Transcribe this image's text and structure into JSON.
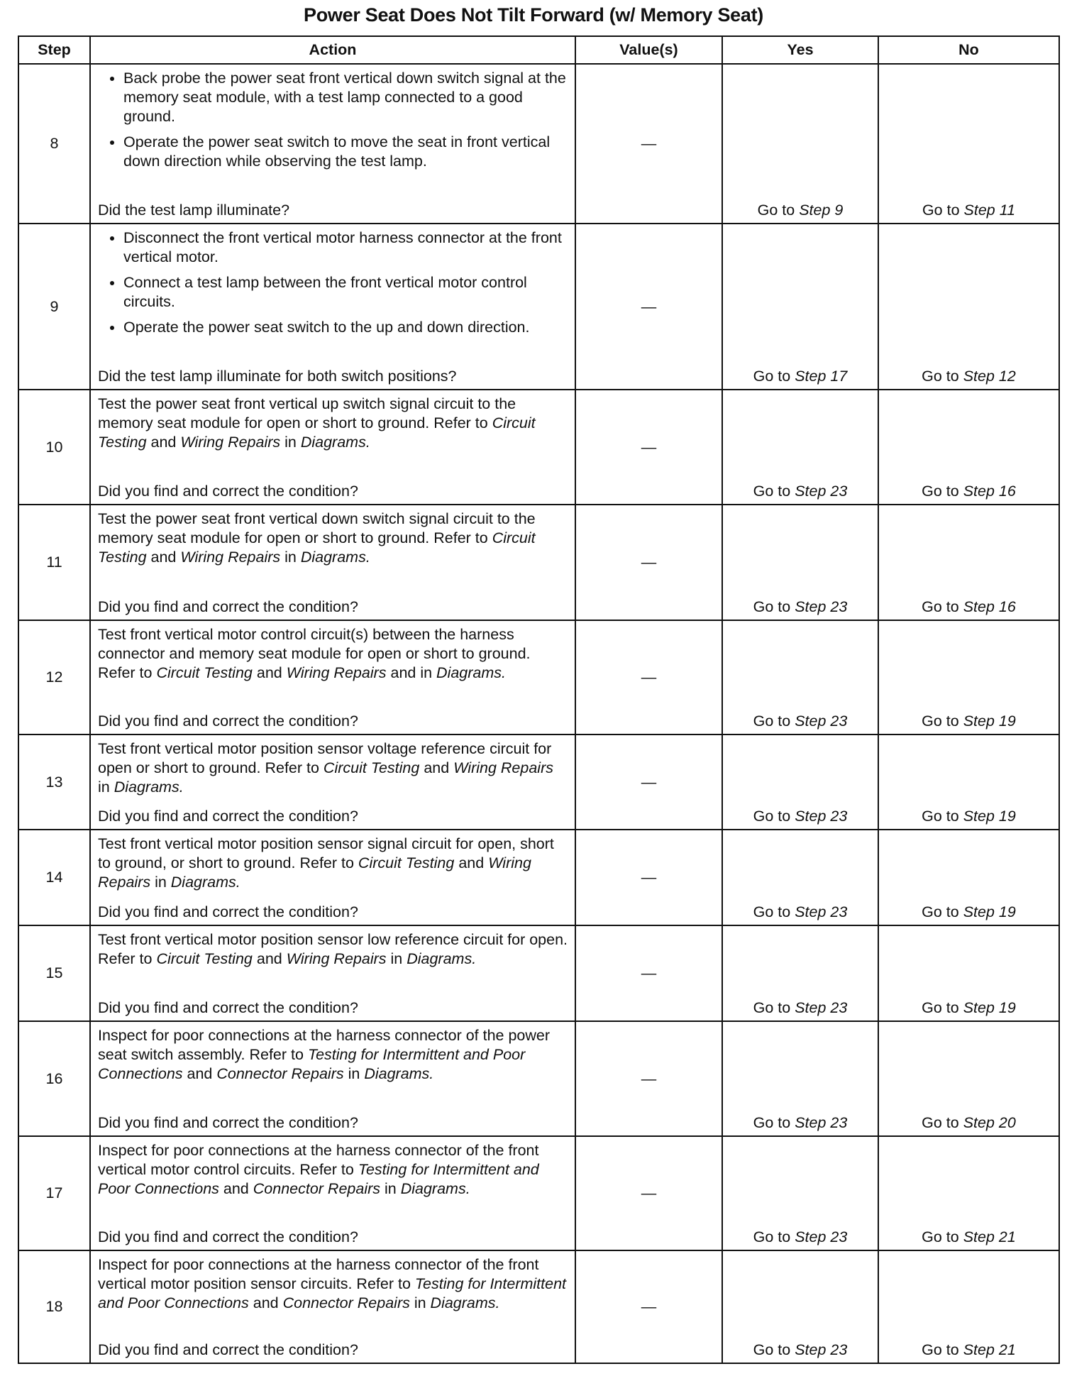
{
  "title": "Power Seat Does Not Tilt Forward (w/ Memory Seat)",
  "columns": {
    "step": "Step",
    "action": "Action",
    "values": "Value(s)",
    "yes": "Yes",
    "no": "No"
  },
  "goto_prefix": "Go to ",
  "rows": [
    {
      "step": "8",
      "value": "—",
      "bullets": [
        [
          {
            "t": "Back probe the power seat front vertical down switch signal at the memory seat module, with a test lamp connected to a good ground."
          }
        ],
        [
          {
            "t": "Operate the power seat switch to move the seat in front vertical down direction while observing the test lamp."
          }
        ]
      ],
      "question": "Did the test lamp illuminate?",
      "yes": "Step 9",
      "no": "Step 11"
    },
    {
      "step": "9",
      "value": "—",
      "bullets": [
        [
          {
            "t": "Disconnect the front vertical motor harness connector at the front vertical motor."
          }
        ],
        [
          {
            "t": "Connect a test lamp between the front vertical motor control circuits."
          }
        ],
        [
          {
            "t": "Operate the power seat switch to the up and down direction."
          }
        ]
      ],
      "question": "Did the test lamp illuminate for both switch positions?",
      "yes": "Step 17",
      "no": "Step 12"
    },
    {
      "step": "10",
      "value": "—",
      "text": [
        {
          "t": "Test the power seat front vertical up switch signal circuit to the memory seat module for open or short to ground. Refer to "
        },
        {
          "t": "Circuit Testing",
          "i": true
        },
        {
          "t": " and "
        },
        {
          "t": "Wiring Repairs",
          "i": true
        },
        {
          "t": " in "
        },
        {
          "t": "Diagrams.",
          "i": true
        }
      ],
      "question": "Did you find and correct the condition?",
      "yes": "Step 23",
      "no": "Step 16"
    },
    {
      "step": "11",
      "value": "—",
      "text": [
        {
          "t": "Test the power seat front vertical down switch signal circuit to the memory seat module for open or short to ground. Refer to "
        },
        {
          "t": "Circuit Testing",
          "i": true
        },
        {
          "t": " and "
        },
        {
          "t": "Wiring Repairs",
          "i": true
        },
        {
          "t": " in "
        },
        {
          "t": "Diagrams.",
          "i": true
        }
      ],
      "question": "Did you find and correct the condition?",
      "yes": "Step 23",
      "no": "Step 16"
    },
    {
      "step": "12",
      "value": "—",
      "text": [
        {
          "t": "Test front vertical motor control circuit(s) between the harness connector and memory seat module for open or short to ground. Refer to "
        },
        {
          "t": "Circuit Testing",
          "i": true
        },
        {
          "t": " and "
        },
        {
          "t": "Wiring Repairs",
          "i": true
        },
        {
          "t": " and in "
        },
        {
          "t": "Diagrams.",
          "i": true
        }
      ],
      "question": "Did you find and correct the condition?",
      "yes": "Step 23",
      "no": "Step 19"
    },
    {
      "step": "13",
      "value": "—",
      "text": [
        {
          "t": "Test front vertical motor position sensor voltage reference circuit for open or short to ground. Refer to "
        },
        {
          "t": "Circuit Testing",
          "i": true
        },
        {
          "t": " and "
        },
        {
          "t": "Wiring Repairs",
          "i": true
        },
        {
          "t": " in "
        },
        {
          "t": "Diagrams.",
          "i": true
        }
      ],
      "question": "Did you find and correct the condition?",
      "yes": "Step 23",
      "no": "Step 19"
    },
    {
      "step": "14",
      "value": "—",
      "text": [
        {
          "t": "Test front vertical motor position sensor signal circuit for open, short to ground, or short to ground. Refer to "
        },
        {
          "t": "Circuit Testing",
          "i": true
        },
        {
          "t": " and "
        },
        {
          "t": "Wiring Repairs",
          "i": true
        },
        {
          "t": " in "
        },
        {
          "t": "Diagrams.",
          "i": true
        }
      ],
      "question": "Did you find and correct the condition?",
      "yes": "Step 23",
      "no": "Step 19"
    },
    {
      "step": "15",
      "value": "—",
      "text": [
        {
          "t": "Test front vertical motor position sensor low reference circuit for open. Refer to "
        },
        {
          "t": "Circuit Testing",
          "i": true
        },
        {
          "t": " and "
        },
        {
          "t": "Wiring Repairs",
          "i": true
        },
        {
          "t": " in "
        },
        {
          "t": "Diagrams.",
          "i": true
        }
      ],
      "question": "Did you find and correct the condition?",
      "yes": "Step 23",
      "no": "Step 19"
    },
    {
      "step": "16",
      "value": "—",
      "text": [
        {
          "t": "Inspect for poor connections at the harness connector of the power seat switch assembly. Refer to "
        },
        {
          "t": "Testing for Intermittent and Poor Connections",
          "i": true
        },
        {
          "t": " and "
        },
        {
          "t": "Connector Repairs",
          "i": true
        },
        {
          "t": " in "
        },
        {
          "t": "Diagrams.",
          "i": true
        }
      ],
      "question": "Did you find and correct the condition?",
      "yes": "Step 23",
      "no": "Step 20"
    },
    {
      "step": "17",
      "value": "—",
      "text": [
        {
          "t": "Inspect for poor connections at the harness connector of the front vertical motor control circuits. Refer to "
        },
        {
          "t": "Testing for Intermittent and Poor Connections",
          "i": true
        },
        {
          "t": " and "
        },
        {
          "t": "Connector Repairs",
          "i": true
        },
        {
          "t": " in "
        },
        {
          "t": "Diagrams.",
          "i": true
        }
      ],
      "question": "Did you find and correct the condition?",
      "yes": "Step 23",
      "no": "Step 21"
    },
    {
      "step": "18",
      "value": "—",
      "text": [
        {
          "t": "Inspect for poor connections at the harness connector of the front vertical motor position sensor circuits. Refer to "
        },
        {
          "t": "Testing for Intermittent and Poor Connections",
          "i": true
        },
        {
          "t": " and "
        },
        {
          "t": "Connector Repairs",
          "i": true
        },
        {
          "t": " in "
        },
        {
          "t": "Diagrams.",
          "i": true
        }
      ],
      "question": "Did you find and correct the condition?",
      "yes": "Step 23",
      "no": "Step 21"
    }
  ]
}
